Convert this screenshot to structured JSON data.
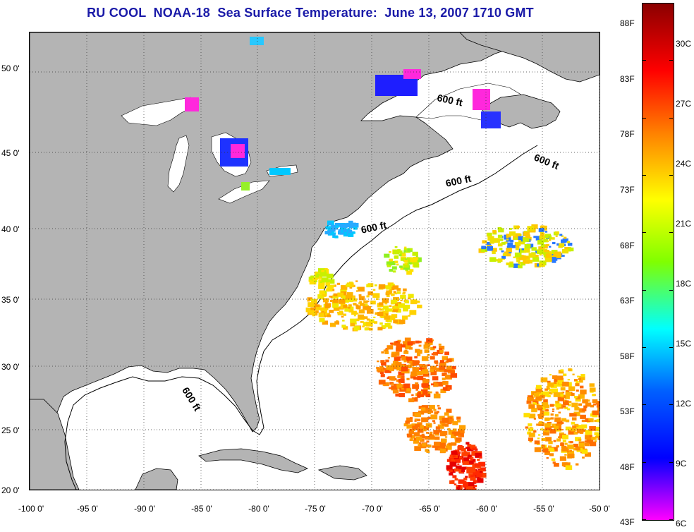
{
  "title": "RU COOL  NOAA-18  Sea Surface Temperature:  June 13, 2007 1710 GMT",
  "latitude_labels": [
    "50 0'",
    "45 0'",
    "40 0'",
    "35 0'",
    "30 0'",
    "25 0'",
    "20 0'"
  ],
  "longitude_labels": [
    "-100 0'",
    "-95 0'",
    "-90 0'",
    "-85 0'",
    "-80 0'",
    "-75 0'",
    "-70 0'",
    "-65 0'",
    "-60 0'",
    "-55 0'",
    "-50 0'"
  ],
  "depth_contour_label": "600 ft",
  "colorbar": {
    "fahrenheit_labels": [
      "88F",
      "83F",
      "78F",
      "73F",
      "68F",
      "63F",
      "58F",
      "53F",
      "48F",
      "43F"
    ],
    "celsius_labels": [
      "30C",
      "27C",
      "24C",
      "21C",
      "18C",
      "15C",
      "12C",
      "9C",
      "6C"
    ],
    "gradient_colors": [
      "#8b0000",
      "#ff0000",
      "#ff8000",
      "#ffff00",
      "#80ff00",
      "#00ffff",
      "#0060ff",
      "#0000ff",
      "#ff00ff"
    ]
  },
  "colors": {
    "land": "#b4b4b4",
    "ocean": "#ffffff",
    "title": "#1a1aa8",
    "grid": "#333333"
  }
}
